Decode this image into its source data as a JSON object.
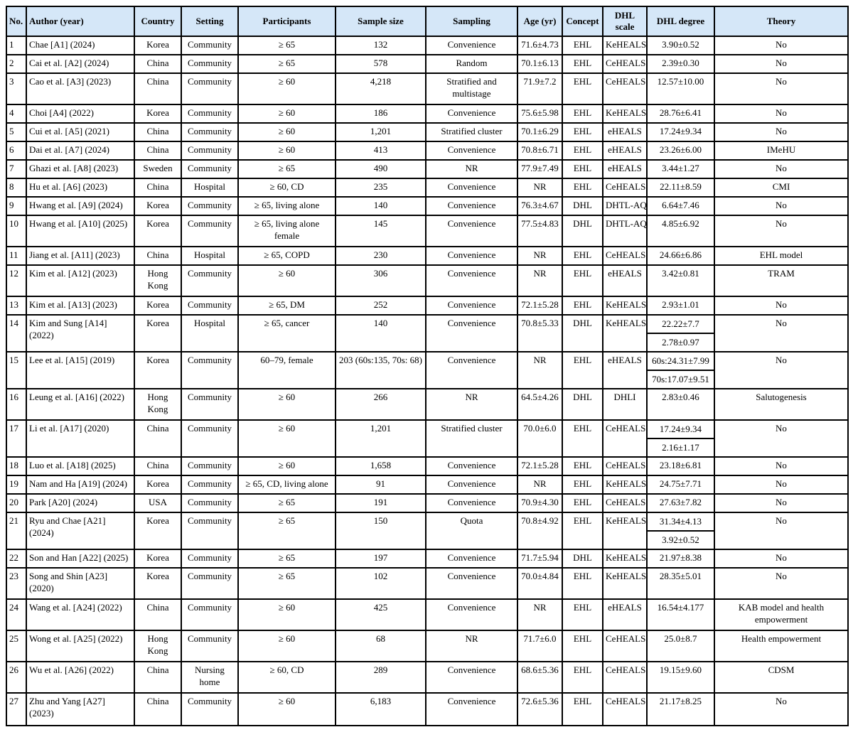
{
  "colors": {
    "header_bg": "#d5e7f8",
    "border": "#000000",
    "page_bg": "#ffffff"
  },
  "columns": [
    {
      "key": "no",
      "label": "No."
    },
    {
      "key": "author",
      "label": "Author (year)"
    },
    {
      "key": "country",
      "label": "Country"
    },
    {
      "key": "setting",
      "label": "Setting"
    },
    {
      "key": "participants",
      "label": "Participants"
    },
    {
      "key": "sample_size",
      "label": "Sample size"
    },
    {
      "key": "sampling",
      "label": "Sampling"
    },
    {
      "key": "age",
      "label": "Age (yr)"
    },
    {
      "key": "concept",
      "label": "Concept"
    },
    {
      "key": "scale",
      "label": "DHL scale"
    },
    {
      "key": "degree",
      "label": "DHL degree"
    },
    {
      "key": "theory",
      "label": "Theory"
    }
  ],
  "rows": [
    {
      "no": "1",
      "author": "Chae [A1] (2024)",
      "country": "Korea",
      "setting": "Community",
      "participants": "≥ 65",
      "sample_size": "132",
      "sampling": "Convenience",
      "age": "71.6±4.73",
      "concept": "EHL",
      "scale": "KeHEALS",
      "degree": [
        "3.90±0.52"
      ],
      "theory": "No"
    },
    {
      "no": "2",
      "author": "Cai et al. [A2] (2024)",
      "country": "China",
      "setting": "Community",
      "participants": "≥ 65",
      "sample_size": "578",
      "sampling": "Random",
      "age": "70.1±6.13",
      "concept": "EHL",
      "scale": "CeHEALS",
      "degree": [
        "2.39±0.30"
      ],
      "theory": "No"
    },
    {
      "no": "3",
      "author": "Cao et al. [A3] (2023)",
      "country": "China",
      "setting": "Community",
      "participants": "≥ 60",
      "sample_size": "4,218",
      "sampling": "Stratified and multistage",
      "age": "71.9±7.2",
      "concept": "EHL",
      "scale": "CeHEALS",
      "degree": [
        "12.57±10.00"
      ],
      "theory": "No"
    },
    {
      "no": "4",
      "author": "Choi [A4] (2022)",
      "country": "Korea",
      "setting": "Community",
      "participants": "≥ 60",
      "sample_size": "186",
      "sampling": "Convenience",
      "age": "75.6±5.98",
      "concept": "EHL",
      "scale": "KeHEALS",
      "degree": [
        "28.76±6.41"
      ],
      "theory": "No"
    },
    {
      "no": "5",
      "author": "Cui et al. [A5] (2021)",
      "country": "China",
      "setting": "Community",
      "participants": "≥ 60",
      "sample_size": "1,201",
      "sampling": "Stratified cluster",
      "age": "70.1±6.29",
      "concept": "EHL",
      "scale": "eHEALS",
      "degree": [
        "17.24±9.34"
      ],
      "theory": "No"
    },
    {
      "no": "6",
      "author": "Dai et al. [A7] (2024)",
      "country": "China",
      "setting": "Community",
      "participants": "≥ 60",
      "sample_size": "413",
      "sampling": "Convenience",
      "age": "70.8±6.71",
      "concept": "EHL",
      "scale": "eHEALS",
      "degree": [
        "23.26±6.00"
      ],
      "theory": "IMeHU"
    },
    {
      "no": "7",
      "author": "Ghazi et al. [A8] (2023)",
      "country": "Sweden",
      "setting": "Community",
      "participants": "≥ 65",
      "sample_size": "490",
      "sampling": "NR",
      "age": "77.9±7.49",
      "concept": "EHL",
      "scale": "eHEALS",
      "degree": [
        "3.44±1.27"
      ],
      "theory": "No"
    },
    {
      "no": "8",
      "author": "Hu et al. [A6] (2023)",
      "country": "China",
      "setting": "Hospital",
      "participants": "≥ 60, CD",
      "sample_size": "235",
      "sampling": "Convenience",
      "age": "NR",
      "concept": "EHL",
      "scale": "CeHEALS",
      "degree": [
        "22.11±8.59"
      ],
      "theory": "CMI"
    },
    {
      "no": "9",
      "author": "Hwang et al. [A9] (2024)",
      "country": "Korea",
      "setting": "Community",
      "participants": "≥ 65, living alone",
      "sample_size": "140",
      "sampling": "Convenience",
      "age": "76.3±4.67",
      "concept": "DHL",
      "scale": "DHTL-AQ",
      "degree": [
        "6.64±7.46"
      ],
      "theory": "No"
    },
    {
      "no": "10",
      "author": "Hwang et al. [A10] (2025)",
      "country": "Korea",
      "setting": "Community",
      "participants": "≥ 65, living alone female",
      "sample_size": "145",
      "sampling": "Convenience",
      "age": "77.5±4.83",
      "concept": "DHL",
      "scale": "DHTL-AQ",
      "degree": [
        "4.85±6.92"
      ],
      "theory": "No"
    },
    {
      "no": "11",
      "author": "Jiang et al. [A11] (2023)",
      "country": "China",
      "setting": "Hospital",
      "participants": "≥ 65, COPD",
      "sample_size": "230",
      "sampling": "Convenience",
      "age": "NR",
      "concept": "EHL",
      "scale": "CeHEALS",
      "degree": [
        "24.66±6.86"
      ],
      "theory": "EHL model"
    },
    {
      "no": "12",
      "author": "Kim et al. [A12] (2023)",
      "country": "Hong Kong",
      "setting": "Community",
      "participants": "≥ 60",
      "sample_size": "306",
      "sampling": "Convenience",
      "age": "NR",
      "concept": "EHL",
      "scale": "eHEALS",
      "degree": [
        "3.42±0.81"
      ],
      "theory": "TRAM"
    },
    {
      "no": "13",
      "author": "Kim et al. [A13] (2023)",
      "country": "Korea",
      "setting": "Community",
      "participants": "≥ 65, DM",
      "sample_size": "252",
      "sampling": "Convenience",
      "age": "72.1±5.28",
      "concept": "EHL",
      "scale": "KeHEALS",
      "degree": [
        "2.93±1.01"
      ],
      "theory": "No"
    },
    {
      "no": "14",
      "author": "Kim and Sung [A14] (2022)",
      "country": "Korea",
      "setting": "Hospital",
      "participants": "≥ 65, cancer",
      "sample_size": "140",
      "sampling": "Convenience",
      "age": "70.8±5.33",
      "concept": "DHL",
      "scale": "KeHEALS",
      "degree": [
        "22.22±7.7",
        "2.78±0.97"
      ],
      "theory": "No"
    },
    {
      "no": "15",
      "author": "Lee et al. [A15] (2019)",
      "country": "Korea",
      "setting": "Community",
      "participants": "60–79, female",
      "sample_size": "203 (60s:135, 70s: 68)",
      "sampling": "Convenience",
      "age": "NR",
      "concept": "EHL",
      "scale": "eHEALS",
      "degree": [
        "60s:24.31±7.99",
        "70s:17.07±9.51"
      ],
      "theory": "No"
    },
    {
      "no": "16",
      "author": "Leung et al. [A16] (2022)",
      "country": "Hong Kong",
      "setting": "Community",
      "participants": "≥ 60",
      "sample_size": "266",
      "sampling": "NR",
      "age": "64.5±4.26",
      "concept": "DHL",
      "scale": "DHLI",
      "degree": [
        "2.83±0.46"
      ],
      "theory": "Salutogenesis"
    },
    {
      "no": "17",
      "author": "Li et al. [A17] (2020)",
      "country": "China",
      "setting": "Community",
      "participants": "≥ 60",
      "sample_size": "1,201",
      "sampling": "Stratified cluster",
      "age": "70.0±6.0",
      "concept": "EHL",
      "scale": "CeHEALS",
      "degree": [
        "17.24±9.34",
        "2.16±1.17"
      ],
      "theory": "No"
    },
    {
      "no": "18",
      "author": "Luo et al. [A18] (2025)",
      "country": "China",
      "setting": "Community",
      "participants": "≥ 60",
      "sample_size": "1,658",
      "sampling": "Convenience",
      "age": "72.1±5.28",
      "concept": "EHL",
      "scale": "CeHEALS",
      "degree": [
        "23.18±6.81"
      ],
      "theory": "No"
    },
    {
      "no": "19",
      "author": "Nam and Ha [A19] (2024)",
      "country": "Korea",
      "setting": "Community",
      "participants": "≥ 65, CD, living alone",
      "sample_size": "91",
      "sampling": "Convenience",
      "age": "NR",
      "concept": "EHL",
      "scale": "KeHEALS",
      "degree": [
        "24.75±7.71"
      ],
      "theory": "No"
    },
    {
      "no": "20",
      "author": "Park [A20] (2024)",
      "country": "USA",
      "setting": "Community",
      "participants": "≥ 65",
      "sample_size": "191",
      "sampling": "Convenience",
      "age": "70.9±4.30",
      "concept": "EHL",
      "scale": "CeHEALS",
      "degree": [
        "27.63±7.82"
      ],
      "theory": "No"
    },
    {
      "no": "21",
      "author": "Ryu and Chae [A21] (2024)",
      "country": "Korea",
      "setting": "Community",
      "participants": "≥ 65",
      "sample_size": "150",
      "sampling": "Quota",
      "age": "70.8±4.92",
      "concept": "EHL",
      "scale": "KeHEALS",
      "degree": [
        "31.34±4.13",
        "3.92±0.52"
      ],
      "theory": "No"
    },
    {
      "no": "22",
      "author": "Son and Han [A22] (2025)",
      "country": "Korea",
      "setting": "Community",
      "participants": "≥ 65",
      "sample_size": "197",
      "sampling": "Convenience",
      "age": "71.7±5.94",
      "concept": "DHL",
      "scale": "KeHEALS",
      "degree": [
        "21.97±8.38"
      ],
      "theory": "No"
    },
    {
      "no": "23",
      "author": "Song and Shin [A23] (2020)",
      "country": "Korea",
      "setting": "Community",
      "participants": "≥ 65",
      "sample_size": "102",
      "sampling": "Convenience",
      "age": "70.0±4.84",
      "concept": "EHL",
      "scale": "KeHEALS",
      "degree": [
        "28.35±5.01"
      ],
      "theory": "No"
    },
    {
      "no": "24",
      "author": "Wang et al. [A24] (2022)",
      "country": "China",
      "setting": "Community",
      "participants": "≥ 60",
      "sample_size": "425",
      "sampling": "Convenience",
      "age": "NR",
      "concept": "EHL",
      "scale": "eHEALS",
      "degree": [
        "16.54±4.177"
      ],
      "theory": "KAB model and health empowerment"
    },
    {
      "no": "25",
      "author": "Wong et al. [A25] (2022)",
      "country": "Hong Kong",
      "setting": "Community",
      "participants": "≥ 60",
      "sample_size": "68",
      "sampling": "NR",
      "age": "71.7±6.0",
      "concept": "EHL",
      "scale": "CeHEALS",
      "degree": [
        "25.0±8.7"
      ],
      "theory": "Health empowerment"
    },
    {
      "no": "26",
      "author": "Wu et al. [A26] (2022)",
      "country": "China",
      "setting": "Nursing home",
      "participants": "≥ 60, CD",
      "sample_size": "289",
      "sampling": "Convenience",
      "age": "68.6±5.36",
      "concept": "EHL",
      "scale": "CeHEALS",
      "degree": [
        "19.15±9.60"
      ],
      "theory": "CDSM"
    },
    {
      "no": "27",
      "author": "Zhu and Yang [A27] (2023)",
      "country": "China",
      "setting": "Community",
      "participants": "≥ 60",
      "sample_size": "6,183",
      "sampling": "Convenience",
      "age": "72.6±5.36",
      "concept": "EHL",
      "scale": "CeHEALS",
      "degree": [
        "21.17±8.25"
      ],
      "theory": "No"
    }
  ]
}
